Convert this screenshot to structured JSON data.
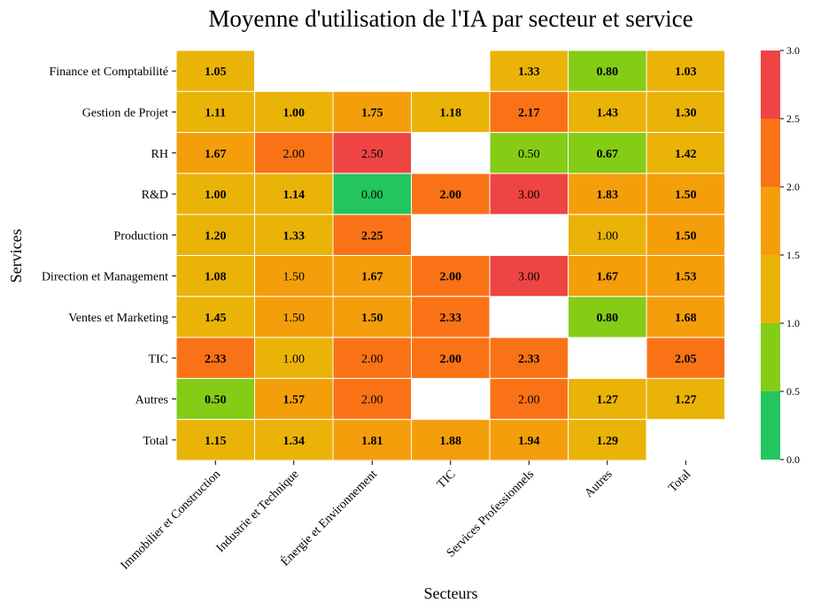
{
  "chart_data": {
    "type": "heatmap",
    "title": "Moyenne d'utilisation de l'IA par secteur et service",
    "xlabel": "Secteurs",
    "ylabel": "Services",
    "x_categories": [
      "Immobilier et Construction",
      "Industrie et Technique",
      "Énergie et Environnement",
      "TIC",
      "Services Professionnels",
      "Autres",
      "Total"
    ],
    "y_categories": [
      "Finance et Comptabilité",
      "Gestion de Projet",
      "RH",
      "R&D",
      "Production",
      "Direction et Management",
      "Ventes et Marketing",
      "TIC",
      "Autres",
      "Total"
    ],
    "values": [
      [
        1.05,
        null,
        null,
        null,
        1.33,
        0.8,
        1.03
      ],
      [
        1.11,
        1.0,
        1.75,
        1.18,
        2.17,
        1.43,
        1.3
      ],
      [
        1.67,
        2.0,
        2.5,
        null,
        0.5,
        0.67,
        1.42
      ],
      [
        1.0,
        1.14,
        0.0,
        2.0,
        3.0,
        1.83,
        1.5
      ],
      [
        1.2,
        1.33,
        2.25,
        null,
        null,
        1.0,
        1.5
      ],
      [
        1.08,
        1.5,
        1.67,
        2.0,
        3.0,
        1.67,
        1.53
      ],
      [
        1.45,
        1.5,
        1.5,
        2.33,
        null,
        0.8,
        1.68
      ],
      [
        2.33,
        1.0,
        2.0,
        2.0,
        2.33,
        null,
        2.05
      ],
      [
        0.5,
        1.57,
        2.0,
        null,
        2.0,
        1.27,
        1.27
      ],
      [
        1.15,
        1.34,
        1.81,
        1.88,
        1.94,
        1.29,
        null
      ]
    ],
    "labels": [
      [
        "1.05",
        "",
        "",
        "",
        "1.33",
        "0.80",
        "1.03"
      ],
      [
        "1.11",
        "1.00",
        "1.75",
        "1.18",
        "2.17",
        "1.43",
        "1.30"
      ],
      [
        "1.67",
        "2.00",
        "2.50",
        "",
        "0.50",
        "0.67",
        "1.42"
      ],
      [
        "1.00",
        "1.14",
        "0.00",
        "2.00",
        "3.00",
        "1.83",
        "1.50"
      ],
      [
        "1.20",
        "1.33",
        "2.25",
        "",
        "",
        "1.00",
        "1.50"
      ],
      [
        "1.08",
        "1.50",
        "1.67",
        "2.00",
        "3.00",
        "1.67",
        "1.53"
      ],
      [
        "1.45",
        "1.50",
        "1.50",
        "2.33",
        "",
        "0.80",
        "1.68"
      ],
      [
        "2.33",
        "1.00",
        "2.00",
        "2.00",
        "2.33",
        "",
        "2.05"
      ],
      [
        "0.50",
        "1.57",
        "2.00",
        "",
        "2.00",
        "1.27",
        "1.27"
      ],
      [
        "1.15",
        "1.34",
        "1.81",
        "1.88",
        "1.94",
        "1.29",
        ""
      ]
    ],
    "bold": [
      [
        true,
        false,
        false,
        false,
        true,
        true,
        true
      ],
      [
        true,
        true,
        true,
        true,
        true,
        true,
        true
      ],
      [
        true,
        false,
        false,
        false,
        false,
        true,
        true
      ],
      [
        true,
        true,
        false,
        true,
        false,
        true,
        true
      ],
      [
        true,
        true,
        true,
        false,
        false,
        false,
        true
      ],
      [
        true,
        false,
        true,
        true,
        false,
        true,
        true
      ],
      [
        true,
        false,
        true,
        true,
        false,
        true,
        true
      ],
      [
        true,
        false,
        false,
        true,
        true,
        false,
        true
      ],
      [
        true,
        true,
        false,
        false,
        false,
        true,
        true
      ],
      [
        true,
        true,
        true,
        true,
        true,
        true,
        false
      ]
    ],
    "colorbar": {
      "min": 0,
      "max": 3,
      "ticks": [
        "0.0",
        "0.5",
        "1.0",
        "1.5",
        "2.0",
        "2.5",
        "3.0"
      ],
      "bins": [
        {
          "from": 0.0,
          "to": 0.5,
          "color": "#22c55e"
        },
        {
          "from": 0.5,
          "to": 1.0,
          "color": "#84cc16"
        },
        {
          "from": 1.0,
          "to": 1.5,
          "color": "#eab308"
        },
        {
          "from": 1.5,
          "to": 2.0,
          "color": "#f59e0b"
        },
        {
          "from": 2.0,
          "to": 2.5,
          "color": "#f97316"
        },
        {
          "from": 2.5,
          "to": 3.0,
          "color": "#ef4444"
        }
      ]
    },
    "grid": false,
    "legend": "colorbar-right"
  }
}
